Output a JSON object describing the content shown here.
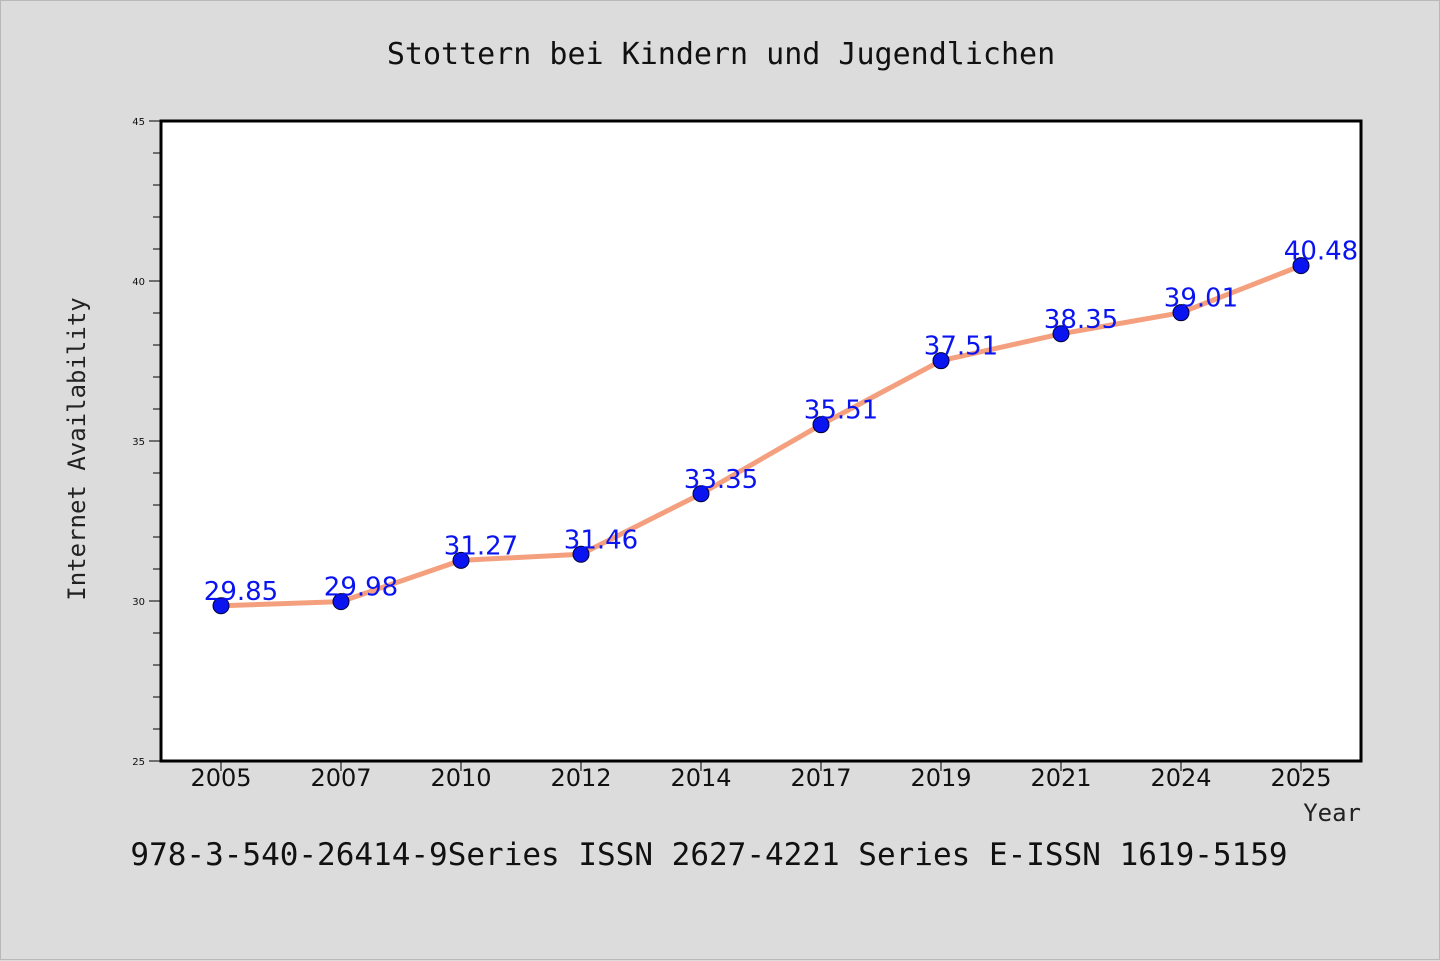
{
  "chart_data": {
    "type": "line",
    "title": "Stottern bei Kindern und Jugendlichen",
    "xlabel": "Year",
    "ylabel": "Internet Availability",
    "categories": [
      "2005",
      "2007",
      "2010",
      "2012",
      "2014",
      "2017",
      "2019",
      "2021",
      "2024",
      "2025"
    ],
    "series": [
      {
        "values": [
          29.85,
          29.98,
          31.27,
          31.46,
          33.35,
          35.51,
          37.51,
          38.35,
          39.01,
          40.48
        ],
        "labels": [
          "29.85",
          "29.98",
          "31.27",
          "31.46",
          "33.35",
          "35.51",
          "37.51",
          "38.35",
          "39.01",
          "40.48"
        ]
      }
    ],
    "ylim": [
      25,
      45
    ],
    "yticks": [
      "25",
      "30",
      "35",
      "40",
      "45"
    ],
    "grid": false,
    "legend": "none",
    "colors": {
      "line": "#f4a07e",
      "marker": "#0a14f0",
      "label": "#0a14f0"
    }
  },
  "footer_text": "978-3-540-26414-9Series ISSN 2627-4221 Series E-ISSN 1619-5159"
}
